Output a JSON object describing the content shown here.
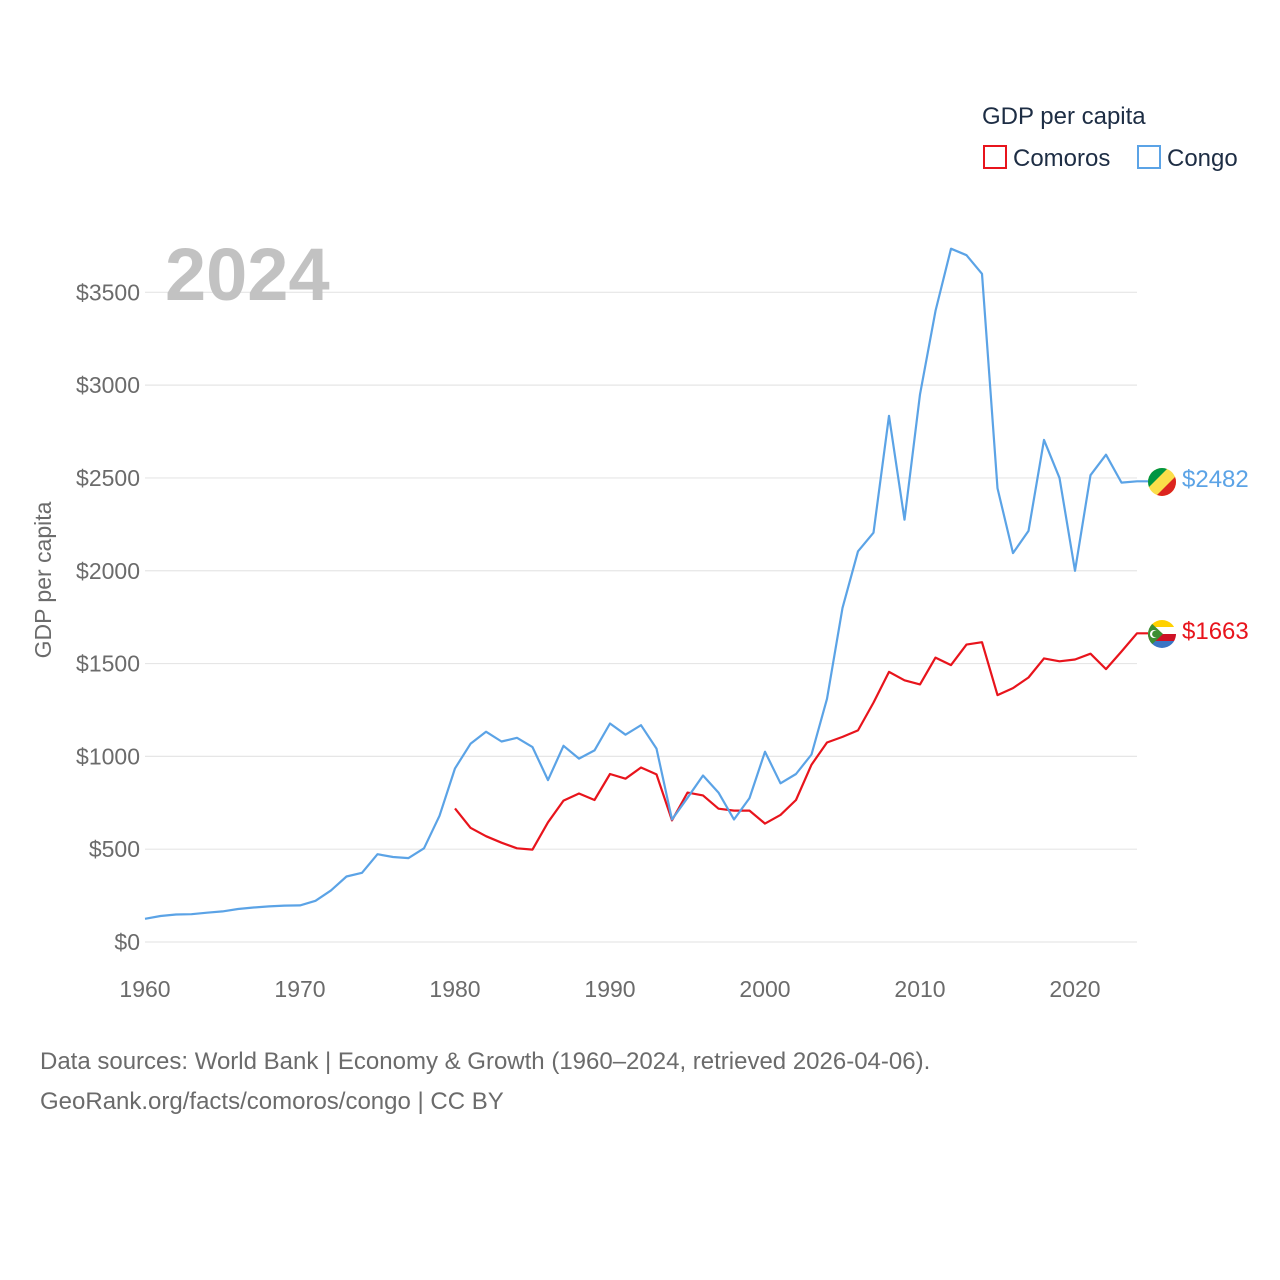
{
  "chart_data": {
    "type": "line",
    "title": "",
    "year_label": "2024",
    "ylabel": "GDP per capita",
    "xlabel": "",
    "xlim": [
      1960,
      2024
    ],
    "ylim": [
      0,
      3750
    ],
    "x_ticks": [
      1960,
      1970,
      1980,
      1990,
      2000,
      2010,
      2020
    ],
    "y_ticks": [
      0,
      500,
      1000,
      1500,
      2000,
      2500,
      3000,
      3500
    ],
    "y_tick_labels": [
      "$0",
      "$500",
      "$1000",
      "$1500",
      "$2000",
      "$2500",
      "$3000",
      "$3500"
    ],
    "legend": {
      "title": "GDP per capita",
      "position": "top-right"
    },
    "series": [
      {
        "name": "Comoros",
        "color": "#e8141c",
        "end_label": "$1663",
        "x": [
          1980,
          1981,
          1982,
          1983,
          1984,
          1985,
          1986,
          1987,
          1988,
          1989,
          1990,
          1991,
          1992,
          1993,
          1994,
          1995,
          1996,
          1997,
          1998,
          1999,
          2000,
          2001,
          2002,
          2003,
          2004,
          2005,
          2006,
          2007,
          2008,
          2009,
          2010,
          2011,
          2012,
          2013,
          2014,
          2015,
          2016,
          2017,
          2018,
          2019,
          2020,
          2021,
          2022,
          2023,
          2024
        ],
        "values": [
          720,
          615,
          570,
          535,
          505,
          498,
          645,
          762,
          800,
          765,
          905,
          880,
          940,
          903,
          655,
          805,
          790,
          718,
          708,
          708,
          638,
          685,
          765,
          955,
          1075,
          1105,
          1140,
          1290,
          1455,
          1410,
          1388,
          1532,
          1492,
          1602,
          1615,
          1330,
          1368,
          1425,
          1528,
          1512,
          1522,
          1553,
          1470,
          1565,
          1663
        ]
      },
      {
        "name": "Congo",
        "color": "#5ba3e6",
        "end_label": "$2482",
        "x": [
          1960,
          1961,
          1962,
          1963,
          1964,
          1965,
          1966,
          1967,
          1968,
          1969,
          1970,
          1971,
          1972,
          1973,
          1974,
          1975,
          1976,
          1977,
          1978,
          1979,
          1980,
          1981,
          1982,
          1983,
          1984,
          1985,
          1986,
          1987,
          1988,
          1989,
          1990,
          1991,
          1992,
          1993,
          1994,
          1995,
          1996,
          1997,
          1998,
          1999,
          2000,
          2001,
          2002,
          2003,
          2004,
          2005,
          2006,
          2007,
          2008,
          2009,
          2010,
          2011,
          2012,
          2013,
          2014,
          2015,
          2016,
          2017,
          2018,
          2019,
          2020,
          2021,
          2022,
          2023,
          2024
        ],
        "values": [
          125,
          140,
          148,
          150,
          158,
          165,
          178,
          186,
          192,
          196,
          197,
          222,
          278,
          353,
          373,
          473,
          458,
          452,
          505,
          680,
          935,
          1068,
          1133,
          1080,
          1100,
          1050,
          872,
          1057,
          988,
          1032,
          1177,
          1117,
          1168,
          1042,
          660,
          777,
          897,
          805,
          660,
          775,
          1025,
          855,
          905,
          1010,
          1310,
          1800,
          2105,
          2205,
          2835,
          2275,
          2950,
          3400,
          3735,
          3700,
          3600,
          2445,
          2095,
          2215,
          2705,
          2500,
          2000,
          2515,
          2625,
          2475,
          2482
        ]
      }
    ]
  },
  "footer": {
    "line1": "Data sources: World Bank | Economy & Growth (1960–2024, retrieved 2026-04-06).",
    "line2": "GeoRank.org/facts/comoros/congo | CC BY"
  }
}
